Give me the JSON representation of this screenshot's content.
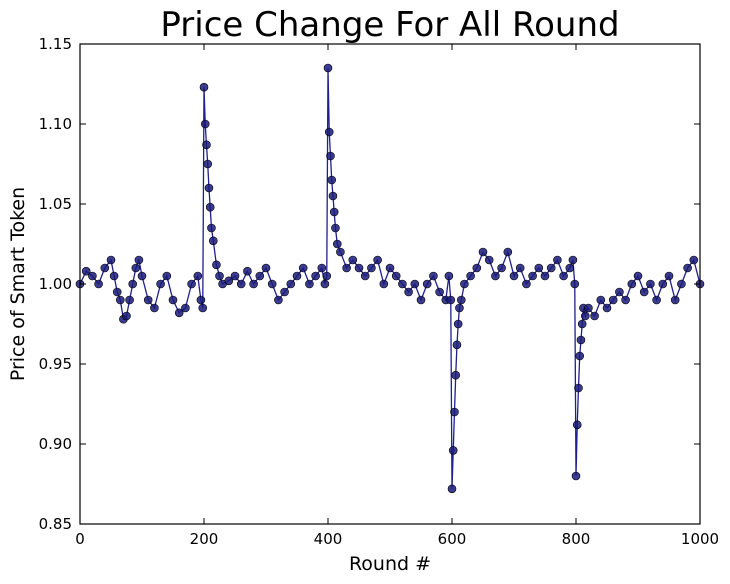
{
  "chart_data": {
    "type": "line",
    "title": "Price Change For All Round",
    "xlabel": "Round #",
    "ylabel": "Price of Smart Token",
    "xlim": [
      0,
      1000
    ],
    "ylim": [
      0.85,
      1.15
    ],
    "xticks": [
      "0",
      "200",
      "400",
      "600",
      "800",
      "1000"
    ],
    "yticks": [
      "0.85",
      "0.90",
      "0.95",
      "1.00",
      "1.05",
      "1.10",
      "1.15"
    ],
    "grid": false,
    "marker": "circle",
    "line_color": "#1f1f8f",
    "marker_color": "#1a1a7a",
    "series": [
      {
        "x": [
          0,
          10,
          20,
          30,
          40,
          50,
          55,
          60,
          65,
          70,
          75,
          80,
          85,
          90,
          95,
          100,
          110,
          120,
          130,
          140,
          150,
          160,
          170,
          180,
          190,
          195,
          198,
          200,
          202,
          204,
          206,
          208,
          210,
          212,
          215,
          220,
          225,
          230,
          240,
          250,
          260,
          270,
          280,
          290,
          300,
          310,
          320,
          330,
          340,
          350,
          360,
          370,
          380,
          390,
          395,
          398,
          400,
          402,
          404,
          406,
          408,
          410,
          412,
          415,
          420,
          430,
          440,
          450,
          460,
          470,
          480,
          490,
          500,
          510,
          520,
          530,
          540,
          550,
          560,
          570,
          580,
          590,
          595,
          598,
          600,
          602,
          604,
          606,
          608,
          610,
          612,
          615,
          620,
          630,
          640,
          650,
          660,
          670,
          680,
          690,
          700,
          710,
          720,
          730,
          740,
          750,
          760,
          770,
          780,
          790,
          795,
          798,
          800,
          802,
          804,
          806,
          808,
          810,
          812,
          815,
          820,
          830,
          840,
          850,
          860,
          870,
          880,
          890,
          900,
          910,
          920,
          930,
          940,
          950,
          960,
          970,
          980,
          990,
          1000
        ],
        "y": [
          1.0,
          1.008,
          1.005,
          1.0,
          1.01,
          1.015,
          1.005,
          0.995,
          0.99,
          0.978,
          0.98,
          0.99,
          1.0,
          1.01,
          1.015,
          1.005,
          0.99,
          0.985,
          1.0,
          1.005,
          0.99,
          0.982,
          0.985,
          1.0,
          1.005,
          0.99,
          0.985,
          1.123,
          1.1,
          1.087,
          1.075,
          1.06,
          1.048,
          1.035,
          1.027,
          1.012,
          1.005,
          1.0,
          1.002,
          1.005,
          1.0,
          1.008,
          1.0,
          1.005,
          1.01,
          1.0,
          0.99,
          0.995,
          1.0,
          1.005,
          1.01,
          1.0,
          1.005,
          1.01,
          1.0,
          1.005,
          1.135,
          1.095,
          1.08,
          1.065,
          1.055,
          1.045,
          1.035,
          1.025,
          1.02,
          1.01,
          1.015,
          1.01,
          1.005,
          1.01,
          1.015,
          1.0,
          1.01,
          1.005,
          1.0,
          0.995,
          1.0,
          0.99,
          1.0,
          1.005,
          0.995,
          0.99,
          1.005,
          0.99,
          0.872,
          0.896,
          0.92,
          0.943,
          0.962,
          0.975,
          0.985,
          0.99,
          1.0,
          1.005,
          1.01,
          1.02,
          1.015,
          1.005,
          1.01,
          1.02,
          1.005,
          1.01,
          1.0,
          1.005,
          1.01,
          1.005,
          1.01,
          1.015,
          1.005,
          1.01,
          1.015,
          1.0,
          0.88,
          0.912,
          0.935,
          0.955,
          0.965,
          0.975,
          0.985,
          0.98,
          0.985,
          0.98,
          0.99,
          0.985,
          0.99,
          0.995,
          0.99,
          1.0,
          1.005,
          0.995,
          1.0,
          0.99,
          1.0,
          1.005,
          0.99,
          1.0,
          1.01,
          1.015,
          1.0
        ]
      }
    ]
  }
}
